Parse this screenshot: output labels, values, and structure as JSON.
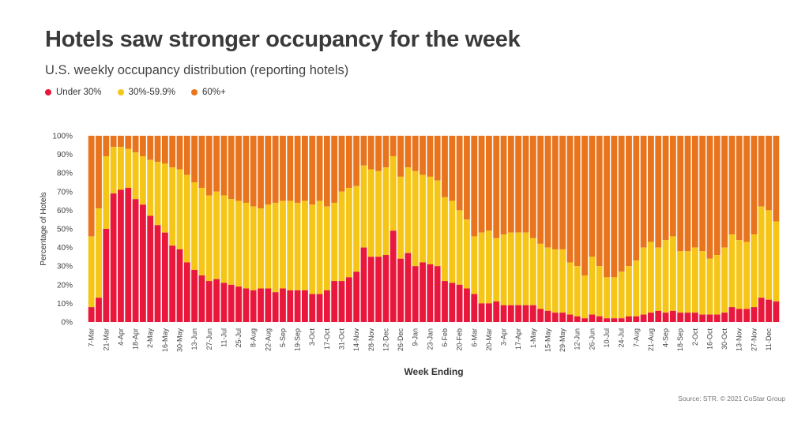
{
  "chart_data": {
    "type": "bar",
    "stacked": true,
    "title": "Hotels saw stronger occupancy for the week",
    "subtitle": "U.S. weekly occupancy distribution (reporting hotels)",
    "xlabel": "Week Ending",
    "ylabel": "Percentage of Hotels",
    "ylim": [
      0,
      100
    ],
    "yticks": [
      "0%",
      "10%",
      "20%",
      "30%",
      "40%",
      "50%",
      "60%",
      "70%",
      "80%",
      "90%",
      "100%"
    ],
    "series_names": [
      "Under 30%",
      "30%-59.9%",
      "60%+"
    ],
    "colors": {
      "under30": "#e8173b",
      "mid": "#f5c518",
      "high": "#e8741e"
    },
    "x_tick_labels": [
      "7-Mar",
      "21-Mar",
      "4-Apr",
      "18-Apr",
      "2-May",
      "16-May",
      "30-May",
      "13-Jun",
      "27-Jun",
      "11-Jul",
      "25-Jul",
      "8-Aug",
      "22-Aug",
      "5-Sep",
      "19-Sep",
      "3-Oct",
      "17-Oct",
      "31-Oct",
      "14-Nov",
      "28-Nov",
      "12-Dec",
      "26-Dec",
      "9-Jan",
      "23-Jan",
      "6-Feb",
      "20-Feb",
      "6-Mar",
      "20-Mar",
      "3-Apr",
      "17-Apr",
      "1-May",
      "15-May",
      "29-May",
      "12-Jun",
      "26-Jun",
      "10-Jul",
      "24-Jul",
      "7-Aug",
      "21-Aug",
      "4-Sep",
      "18-Sep",
      "2-Oct",
      "16-Oct",
      "30-Oct",
      "13-Nov",
      "27-Nov",
      "11-Dec"
    ],
    "under30": [
      8,
      13,
      50,
      69,
      71,
      72,
      66,
      63,
      57,
      52,
      48,
      41,
      39,
      32,
      28,
      25,
      22,
      23,
      21,
      20,
      19,
      18,
      17,
      18,
      18,
      16,
      18,
      17,
      17,
      17,
      15,
      15,
      17,
      22,
      22,
      24,
      27,
      40,
      35,
      35,
      36,
      49,
      34,
      37,
      30,
      32,
      31,
      30,
      22,
      21,
      20,
      18,
      15,
      10,
      10,
      11,
      9,
      9,
      9,
      9,
      9,
      7,
      6,
      5,
      5,
      4,
      3,
      2,
      4,
      3,
      2,
      2,
      2,
      3,
      3,
      4,
      5,
      6,
      5,
      6,
      5,
      5,
      5,
      4,
      4,
      4,
      5,
      8,
      7,
      7,
      8,
      13,
      12,
      11
    ],
    "under60": [
      46,
      61,
      89,
      94,
      94,
      93,
      91,
      89,
      87,
      86,
      85,
      83,
      82,
      79,
      75,
      72,
      68,
      70,
      68,
      66,
      65,
      64,
      62,
      61,
      63,
      64,
      65,
      65,
      64,
      65,
      63,
      65,
      62,
      64,
      70,
      72,
      73,
      84,
      82,
      81,
      83,
      89,
      78,
      83,
      81,
      79,
      78,
      76,
      67,
      65,
      60,
      55,
      46,
      48,
      49,
      45,
      47,
      48,
      48,
      48,
      45,
      42,
      40,
      39,
      39,
      32,
      30,
      25,
      35,
      30,
      24,
      24,
      27,
      30,
      33,
      40,
      43,
      40,
      44,
      46,
      38,
      38,
      40,
      38,
      34,
      36,
      40,
      47,
      44,
      43,
      47,
      62,
      60,
      54
    ]
  },
  "source": "Source: STR. © 2021 CoStar Group"
}
